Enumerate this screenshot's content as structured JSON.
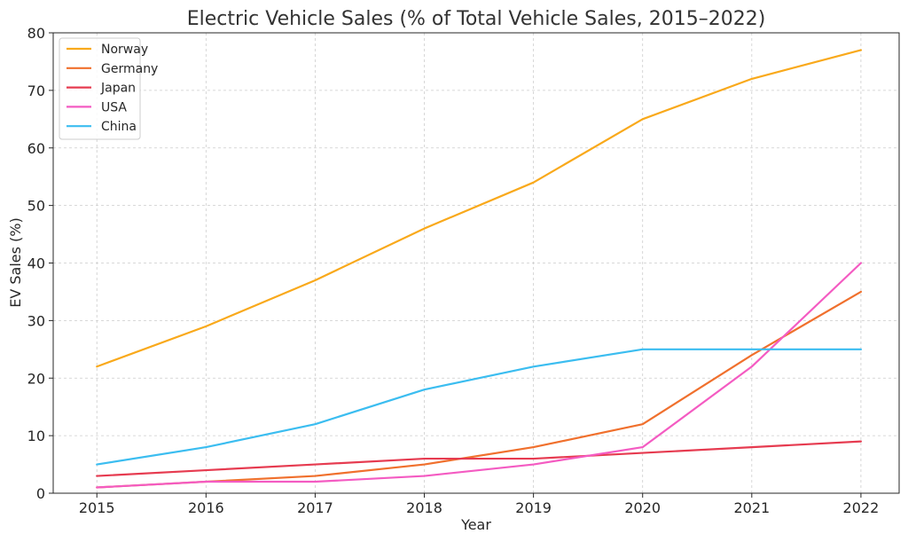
{
  "chart_data": {
    "type": "line",
    "title": "Electric Vehicle Sales (% of Total Vehicle Sales, 2015–2022)",
    "xlabel": "Year",
    "ylabel": "EV Sales (%)",
    "x": [
      2015,
      2016,
      2017,
      2018,
      2019,
      2020,
      2021,
      2022
    ],
    "ylim": [
      0,
      80
    ],
    "yticks": [
      0,
      10,
      20,
      30,
      40,
      50,
      60,
      70,
      80
    ],
    "grid": true,
    "legend_position": "top-left",
    "series": [
      {
        "name": "Norway",
        "color": "#f9a91b",
        "values": [
          22,
          29,
          37,
          46,
          54,
          65,
          72,
          77
        ]
      },
      {
        "name": "Germany",
        "color": "#f0702d",
        "values": [
          1,
          2,
          3,
          5,
          8,
          12,
          24,
          35
        ]
      },
      {
        "name": "Japan",
        "color": "#e63b50",
        "values": [
          3,
          4,
          5,
          6,
          6,
          7,
          8,
          9
        ]
      },
      {
        "name": "USA",
        "color": "#f45bc2",
        "values": [
          1,
          2,
          2,
          3,
          5,
          8,
          22,
          40
        ]
      },
      {
        "name": "China",
        "color": "#3bbdf0",
        "values": [
          5,
          8,
          12,
          18,
          22,
          25,
          25,
          25
        ]
      }
    ]
  }
}
